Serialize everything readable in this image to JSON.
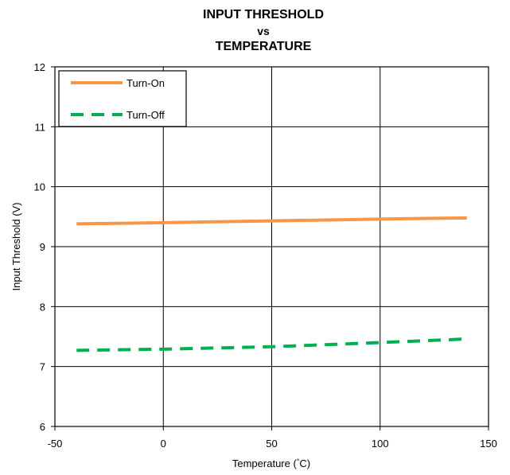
{
  "chart_data": {
    "type": "line",
    "title_lines": [
      "INPUT THRESHOLD",
      "vs",
      "TEMPERATURE"
    ],
    "xlabel_parts": [
      "Temperature (",
      "°",
      "C)"
    ],
    "ylabel": "Input Threshold (V)",
    "xlim": [
      -50,
      150
    ],
    "ylim": [
      6,
      12
    ],
    "xticks": [
      -50,
      0,
      50,
      100,
      150
    ],
    "yticks": [
      6,
      7,
      8,
      9,
      10,
      11,
      12
    ],
    "grid": true,
    "legend_position": "top-left",
    "series": [
      {
        "name": "Turn-On",
        "color": "#F79646",
        "style": "solid",
        "x": [
          -40,
          0,
          50,
          100,
          140
        ],
        "y": [
          9.38,
          9.4,
          9.43,
          9.46,
          9.48
        ]
      },
      {
        "name": "Turn-Off",
        "color": "#00B050",
        "style": "dashed",
        "x": [
          -40,
          0,
          50,
          100,
          140
        ],
        "y": [
          7.27,
          7.29,
          7.33,
          7.4,
          7.46
        ]
      }
    ]
  }
}
